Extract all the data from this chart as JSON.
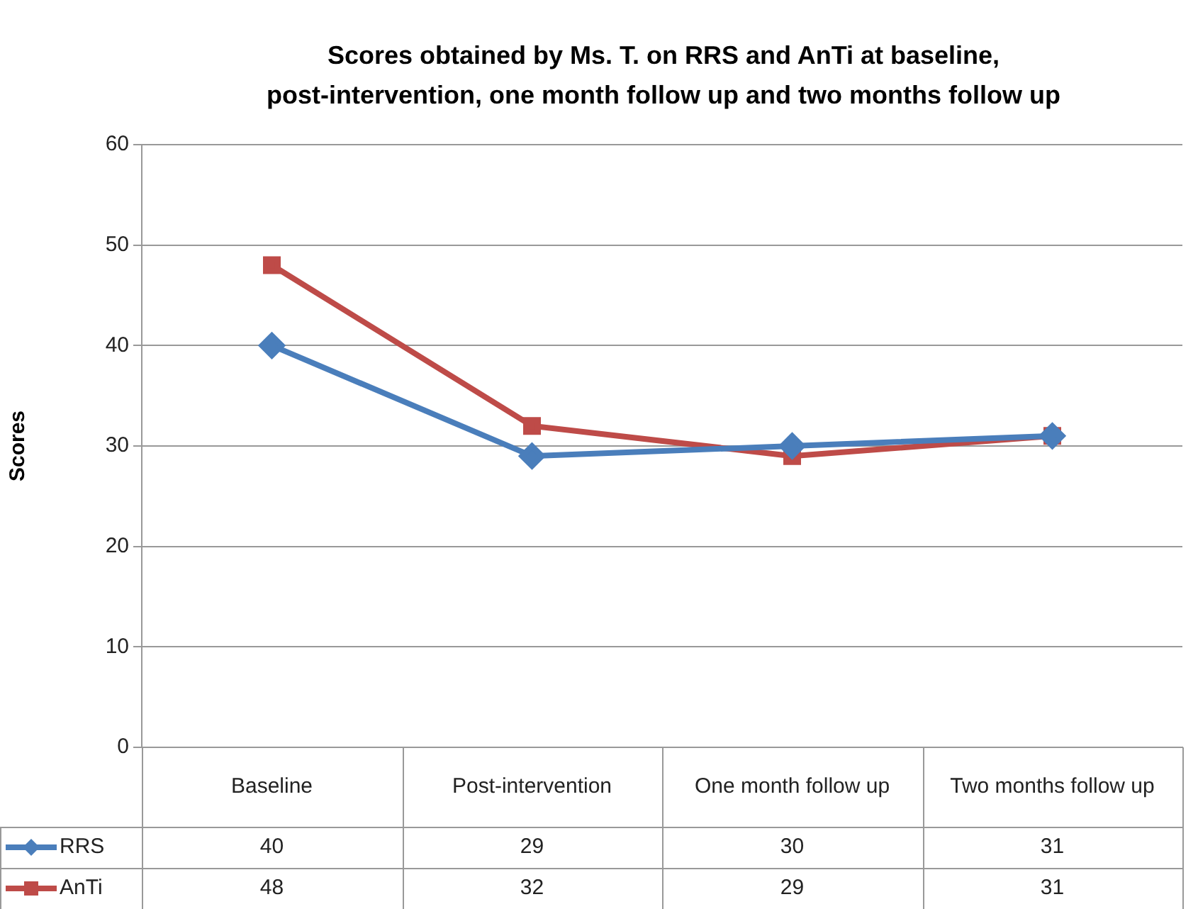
{
  "chart_data": {
    "type": "line",
    "title": "Scores obtained by Ms. T. on RRS and AnTi at baseline, post-intervention, one month follow up and two months follow up",
    "ylabel": "Scores",
    "categories": [
      "Baseline",
      "Post-intervention",
      "One month follow up",
      "Two months follow up"
    ],
    "series": [
      {
        "name": "RRS",
        "color": "#4a7ebb",
        "marker": "diamond",
        "values": [
          40,
          29,
          30,
          31
        ]
      },
      {
        "name": "AnTi",
        "color": "#be4b48",
        "marker": "square",
        "values": [
          48,
          32,
          29,
          31
        ]
      }
    ],
    "ylim": [
      0,
      60
    ],
    "yticks": [
      0,
      10,
      20,
      30,
      40,
      50,
      60
    ],
    "grid": "y",
    "legend": "bottom left",
    "data_labels": true
  }
}
